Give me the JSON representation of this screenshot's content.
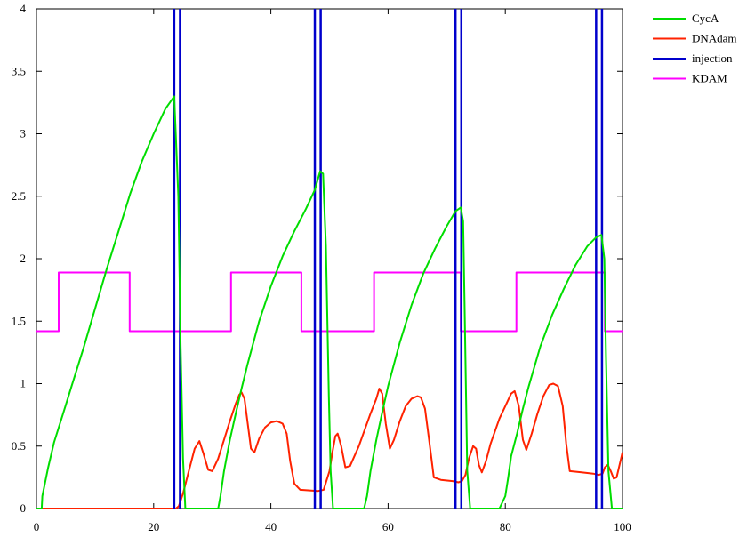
{
  "chart_data": {
    "type": "line",
    "title": "",
    "xlabel": "",
    "ylabel": "",
    "xlim": [
      0,
      100
    ],
    "ylim": [
      0,
      4
    ],
    "x_ticks": [
      "0",
      "20",
      "40",
      "60",
      "80",
      "100"
    ],
    "y_ticks": [
      "0",
      "0.5",
      "1",
      "1.5",
      "2",
      "2.5",
      "3",
      "3.5",
      "4"
    ],
    "grid": false,
    "legend_position": "top-right",
    "series": [
      {
        "name": "CycA",
        "color": "#00dd00",
        "x": [
          0,
          0.9,
          1,
          2,
          3,
          4,
          5,
          6,
          8,
          10,
          12,
          14,
          16,
          18,
          20,
          22,
          23.5,
          24.2,
          24.6,
          25,
          25.4,
          30,
          31,
          31.4,
          32,
          33,
          34,
          35,
          36,
          38,
          40,
          42,
          44,
          46,
          47.5,
          48.4,
          48.9,
          49.4,
          49.9,
          50.2,
          50.6,
          55,
          55.9,
          56.4,
          57,
          58,
          59,
          60,
          62,
          64,
          66,
          68,
          70,
          71.5,
          72.4,
          72.8,
          73.1,
          73.5,
          74,
          79,
          80,
          80.5,
          81,
          82,
          83,
          84,
          86,
          88,
          90,
          92,
          94,
          95.5,
          96.4,
          96.9,
          97.2,
          97.6,
          98.2,
          100
        ],
        "y": [
          0,
          0,
          0.1,
          0.33,
          0.53,
          0.68,
          0.83,
          0.98,
          1.28,
          1.6,
          1.92,
          2.22,
          2.52,
          2.78,
          3.0,
          3.2,
          3.3,
          2.5,
          1.3,
          0.4,
          0,
          0,
          0,
          0.1,
          0.3,
          0.55,
          0.76,
          0.96,
          1.15,
          1.5,
          1.78,
          2.02,
          2.22,
          2.4,
          2.55,
          2.7,
          2.68,
          2.1,
          0.9,
          0.3,
          0,
          0,
          0,
          0.1,
          0.3,
          0.55,
          0.77,
          0.98,
          1.33,
          1.63,
          1.88,
          2.08,
          2.26,
          2.38,
          2.41,
          2.3,
          1.5,
          0.3,
          0,
          0,
          0.1,
          0.25,
          0.42,
          0.6,
          0.8,
          0.98,
          1.3,
          1.55,
          1.76,
          1.95,
          2.1,
          2.17,
          2.19,
          2.0,
          1.2,
          0.3,
          0,
          0
        ]
      },
      {
        "name": "DNAdam",
        "color": "#ff2200",
        "x": [
          0,
          23.8,
          24.3,
          25,
          26,
          27,
          27.8,
          28.5,
          29.3,
          30,
          31,
          32,
          33,
          34,
          34.6,
          35,
          35.5,
          36,
          36.6,
          37.2,
          38,
          39,
          40,
          41,
          42,
          42.7,
          43.3,
          44,
          45,
          48,
          49,
          50,
          50.5,
          51,
          51.4,
          52,
          52.7,
          53.5,
          55,
          57,
          58,
          58.5,
          59,
          59.6,
          60.3,
          61,
          62,
          63,
          64,
          65,
          65.6,
          66.3,
          67,
          67.8,
          69,
          71,
          72,
          72.6,
          73.2,
          73.8,
          74.5,
          75,
          75.5,
          76,
          76.7,
          77.5,
          79,
          80,
          81,
          81.6,
          82.3,
          83,
          83.6,
          84.5,
          85.5,
          86.5,
          87.5,
          88.2,
          89,
          89.8,
          90.4,
          91,
          93,
          95,
          96,
          96.6,
          97,
          97.5,
          98,
          98.5,
          99,
          100
        ],
        "y": [
          0,
          0,
          0.02,
          0.12,
          0.3,
          0.48,
          0.54,
          0.44,
          0.31,
          0.3,
          0.4,
          0.55,
          0.7,
          0.84,
          0.91,
          0.93,
          0.88,
          0.7,
          0.48,
          0.45,
          0.56,
          0.65,
          0.69,
          0.7,
          0.68,
          0.6,
          0.38,
          0.2,
          0.15,
          0.14,
          0.15,
          0.3,
          0.45,
          0.58,
          0.6,
          0.5,
          0.33,
          0.34,
          0.5,
          0.76,
          0.88,
          0.96,
          0.92,
          0.68,
          0.48,
          0.55,
          0.7,
          0.82,
          0.88,
          0.9,
          0.89,
          0.8,
          0.55,
          0.25,
          0.23,
          0.22,
          0.21,
          0.22,
          0.27,
          0.4,
          0.5,
          0.48,
          0.35,
          0.29,
          0.38,
          0.52,
          0.72,
          0.82,
          0.92,
          0.94,
          0.82,
          0.55,
          0.47,
          0.6,
          0.76,
          0.9,
          0.99,
          1.0,
          0.98,
          0.82,
          0.52,
          0.3,
          0.29,
          0.28,
          0.27,
          0.28,
          0.33,
          0.35,
          0.3,
          0.24,
          0.25,
          0.45
        ]
      },
      {
        "name": "injection",
        "color": "#0000cc",
        "x_positions": [
          23.5,
          24.5,
          47.5,
          48.5,
          71.5,
          72.5,
          95.5,
          96.5
        ]
      },
      {
        "name": "KDAM",
        "color": "#ff00ff",
        "x": [
          0,
          3.8,
          3.8,
          15.9,
          15.9,
          33.2,
          33.2,
          45.2,
          45.2,
          57.6,
          57.6,
          72.4,
          72.4,
          81.9,
          81.9,
          97,
          97,
          100
        ],
        "y": [
          1.42,
          1.42,
          1.89,
          1.89,
          1.42,
          1.42,
          1.89,
          1.89,
          1.42,
          1.42,
          1.89,
          1.89,
          1.42,
          1.42,
          1.89,
          1.89,
          1.42,
          1.42
        ]
      }
    ]
  }
}
